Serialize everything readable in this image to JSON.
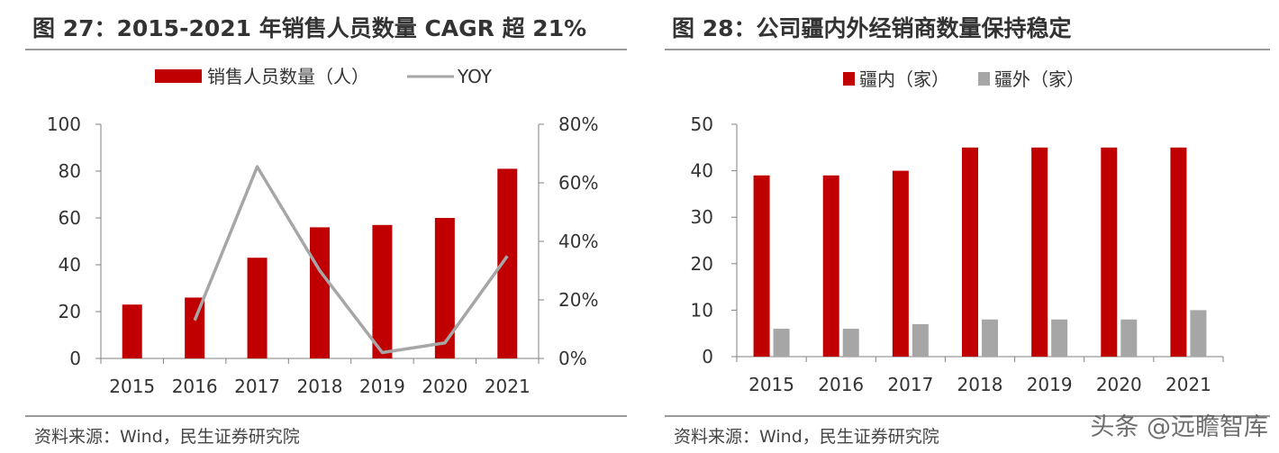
{
  "left_panel": {
    "title": "图 27：2015-2021 年销售人员数量 CAGR 超 21%",
    "source": "资料来源：Wind，民生证券研究院"
  },
  "right_panel": {
    "title": "图 28：公司疆内外经销商数量保持稳定",
    "source": "资料来源：Wind，民生证券研究院"
  },
  "watermark": "头条 @远瞻智库",
  "colors": {
    "red": "#C00000",
    "gray": "#A6A6A6",
    "axis": "#808080"
  },
  "chart_data": [
    {
      "type": "bar",
      "categories": [
        "2015",
        "2016",
        "2017",
        "2018",
        "2019",
        "2020",
        "2021"
      ],
      "series": [
        {
          "name": "销售人员数量（人）",
          "kind": "bar",
          "axis": "left",
          "color": "#C00000",
          "values": [
            23,
            26,
            43,
            56,
            57,
            60,
            81
          ]
        },
        {
          "name": "YOY",
          "kind": "line",
          "axis": "right",
          "color": "#A6A6A6",
          "values": [
            null,
            0.13,
            0.655,
            0.3,
            0.02,
            0.053,
            0.35
          ]
        }
      ],
      "ylim": [
        0,
        100
      ],
      "yticks": [
        0,
        20,
        40,
        60,
        80,
        100
      ],
      "y2lim": [
        0,
        0.8
      ],
      "y2ticks": [
        "0%",
        "20%",
        "40%",
        "60%",
        "80%"
      ],
      "legend": "top",
      "grid": false
    },
    {
      "type": "bar",
      "categories": [
        "2015",
        "2016",
        "2017",
        "2018",
        "2019",
        "2020",
        "2021"
      ],
      "series": [
        {
          "name": "疆内（家）",
          "color": "#C00000",
          "values": [
            39,
            39,
            40,
            45,
            45,
            45,
            45
          ]
        },
        {
          "name": "疆外（家）",
          "color": "#A6A6A6",
          "values": [
            6,
            6,
            7,
            8,
            8,
            8,
            10
          ]
        }
      ],
      "ylim": [
        0,
        50
      ],
      "yticks": [
        0,
        10,
        20,
        30,
        40,
        50
      ],
      "legend": "top",
      "grid": false
    }
  ]
}
